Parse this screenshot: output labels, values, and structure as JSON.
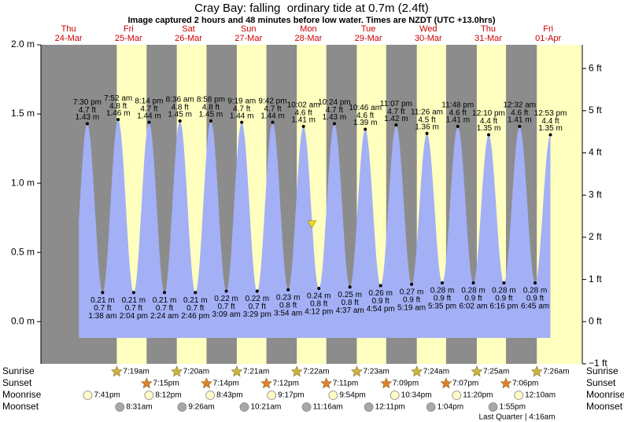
{
  "chart_data": {
    "type": "tide",
    "title": "Cray Bay: falling  ordinary tide at 0.7m (2.4ft)",
    "subtitle": "Image captured 2 hours and 48 minutes before low water. Times are NZDT (UTC +13.0hrs)",
    "days": [
      {
        "weekday": "Thu",
        "date": "24-Mar"
      },
      {
        "weekday": "Fri",
        "date": "25-Mar"
      },
      {
        "weekday": "Sat",
        "date": "26-Mar"
      },
      {
        "weekday": "Sun",
        "date": "27-Mar"
      },
      {
        "weekday": "Mon",
        "date": "28-Mar"
      },
      {
        "weekday": "Tue",
        "date": "29-Mar"
      },
      {
        "weekday": "Wed",
        "date": "30-Mar"
      },
      {
        "weekday": "Thu",
        "date": "31-Mar"
      },
      {
        "weekday": "Fri",
        "date": "01-Apr"
      }
    ],
    "x": [
      "7:30 pm",
      "1:38 am",
      "7:52 am",
      "2:04 pm",
      "8:14 pm",
      "2:24 am",
      "8:36 am",
      "2:46 pm",
      "8:58 pm",
      "3:09 am",
      "9:19 am",
      "3:29 pm",
      "9:42 pm",
      "3:54 am",
      "10:02 am",
      "4:12 pm",
      "10:24 pm",
      "4:37 am",
      "10:46 am",
      "4:54 pm",
      "11:07 pm",
      "5:19 am",
      "11:26 am",
      "5:35 pm",
      "11:48 pm",
      "6:02 am",
      "12:10 pm",
      "6:16 pm",
      "12:32 am",
      "6:45 am",
      "12:53 pm"
    ],
    "values": [
      1.43,
      0.21,
      1.46,
      0.21,
      1.44,
      0.21,
      1.45,
      0.21,
      1.45,
      0.22,
      1.44,
      0.22,
      1.44,
      0.23,
      1.41,
      0.24,
      1.43,
      0.25,
      1.39,
      0.26,
      1.42,
      0.27,
      1.36,
      0.28,
      1.41,
      0.28,
      1.35,
      0.28,
      1.41,
      0.28,
      1.35
    ],
    "value_labels": [
      "1.43 m",
      "0.21 m",
      "1.46 m",
      "0.21 m",
      "1.44 m",
      "0.21 m",
      "1.45 m",
      "0.21 m",
      "1.45 m",
      "0.22 m",
      "1.44 m",
      "0.22 m",
      "1.44 m",
      "0.23 m",
      "1.41 m",
      "0.24 m",
      "1.43 m",
      "0.25 m",
      "1.39 m",
      "0.26 m",
      "1.42 m",
      "0.27 m",
      "1.36 m",
      "0.28 m",
      "1.41 m",
      "0.28 m",
      "1.35 m",
      "0.28 m",
      "1.41 m",
      "0.28 m",
      "1.35 m"
    ],
    "ft_labels": [
      "4.7 ft",
      "0.7 ft",
      "4.8 ft",
      "0.7 ft",
      "4.7 ft",
      "0.7 ft",
      "4.8 ft",
      "0.7 ft",
      "4.8 ft",
      "0.7 ft",
      "4.7 ft",
      "0.7 ft",
      "4.7 ft",
      "0.8 ft",
      "4.6 ft",
      "0.8 ft",
      "4.7 ft",
      "0.8 ft",
      "4.6 ft",
      "0.9 ft",
      "4.7 ft",
      "0.9 ft",
      "4.5 ft",
      "0.9 ft",
      "4.6 ft",
      "0.9 ft",
      "4.4 ft",
      "0.9 ft",
      "4.6 ft",
      "0.9 ft",
      "4.4 ft"
    ],
    "color": "#a3b0f6",
    "ylim": [
      -0.305,
      2.0
    ],
    "yticks": [
      {
        "value": 0,
        "label": "0.0 m"
      },
      {
        "value": 0.5,
        "label": "0.5 m"
      },
      {
        "value": 1,
        "label": "1.0 m"
      },
      {
        "value": 1.5,
        "label": "1.5 m"
      },
      {
        "value": 2,
        "label": "2.0 m"
      }
    ],
    "y2lim": [
      -1,
      6.562
    ],
    "y2ticks": [
      {
        "value": -1,
        "label": "−1 ft"
      },
      {
        "value": 0,
        "label": "0 ft"
      },
      {
        "value": 1,
        "label": "1 ft"
      },
      {
        "value": 2,
        "label": "2 ft"
      },
      {
        "value": 3,
        "label": "3 ft"
      },
      {
        "value": 4,
        "label": "4 ft"
      },
      {
        "value": 5,
        "label": "5 ft"
      },
      {
        "value": 6,
        "label": "6 ft"
      }
    ],
    "marker": {
      "day": "28-Mar",
      "time": "1:24 pm",
      "value": 0.7,
      "color": "#f0e020"
    },
    "sun_moon": [
      {
        "name": "Sunrise",
        "color": "#c9b63c",
        "times": [
          null,
          "7:19am",
          "7:20am",
          "7:21am",
          "7:22am",
          "7:23am",
          "7:24am",
          "7:25am",
          "7:26am"
        ]
      },
      {
        "name": "Sunset",
        "color": "#e0802c",
        "times": [
          null,
          "7:15pm",
          "7:14pm",
          "7:12pm",
          "7:11pm",
          "7:09pm",
          "7:07pm",
          "7:06pm",
          null
        ]
      },
      {
        "name": "Moonrise",
        "color": "#fffcc8",
        "times": [
          "7:41pm",
          "8:12pm",
          "8:43pm",
          "9:17pm",
          "9:54pm",
          "10:34pm",
          "11:20pm",
          null,
          "12:10am"
        ]
      },
      {
        "name": "Moonset",
        "color": "#a8a8a8",
        "times": [
          null,
          "8:31am",
          "9:26am",
          "10:21am",
          "11:16am",
          "12:11pm",
          "1:04pm",
          "1:55pm",
          null
        ]
      }
    ],
    "moon_phase": "Last Quarter | 4:16am"
  }
}
